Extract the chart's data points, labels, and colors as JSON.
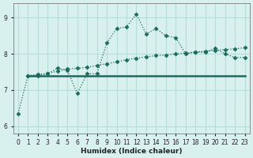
{
  "xlabel": "Humidex (Indice chaleur)",
  "ylabel": "",
  "xlim": [
    -0.5,
    23.5
  ],
  "ylim": [
    5.8,
    9.4
  ],
  "yticks": [
    6,
    7,
    8,
    9
  ],
  "xticks": [
    0,
    1,
    2,
    3,
    4,
    5,
    6,
    7,
    8,
    9,
    10,
    11,
    12,
    13,
    14,
    15,
    16,
    17,
    18,
    19,
    20,
    21,
    22,
    23
  ],
  "background_color": "#d8f0ee",
  "grid_color": "#b8dcd8",
  "line_color": "#1a6b5e",
  "line1_x": [
    0,
    1,
    2,
    3,
    4,
    5,
    6,
    7,
    8,
    9,
    10,
    11,
    12,
    13,
    14,
    15,
    16,
    17,
    18,
    19,
    20,
    21,
    22,
    23
  ],
  "line1_y": [
    6.35,
    7.4,
    7.4,
    7.45,
    7.6,
    7.55,
    6.9,
    7.45,
    7.45,
    8.3,
    8.7,
    8.75,
    9.1,
    8.55,
    8.7,
    8.5,
    8.45,
    8.0,
    8.05,
    8.05,
    8.15,
    8.0,
    7.9,
    7.9
  ],
  "line2_x": [
    1,
    2,
    3,
    4,
    5,
    6,
    7,
    8,
    9,
    10,
    11,
    12,
    13,
    14,
    15,
    16,
    17,
    18,
    19,
    20,
    21,
    22,
    23
  ],
  "line2_y": [
    7.4,
    7.43,
    7.46,
    7.52,
    7.58,
    7.6,
    7.63,
    7.68,
    7.73,
    7.78,
    7.84,
    7.88,
    7.92,
    7.95,
    7.97,
    8.0,
    8.02,
    8.05,
    8.07,
    8.1,
    8.12,
    8.14,
    8.17
  ],
  "line3_x": [
    1,
    23
  ],
  "line3_y": [
    7.4,
    7.4
  ]
}
